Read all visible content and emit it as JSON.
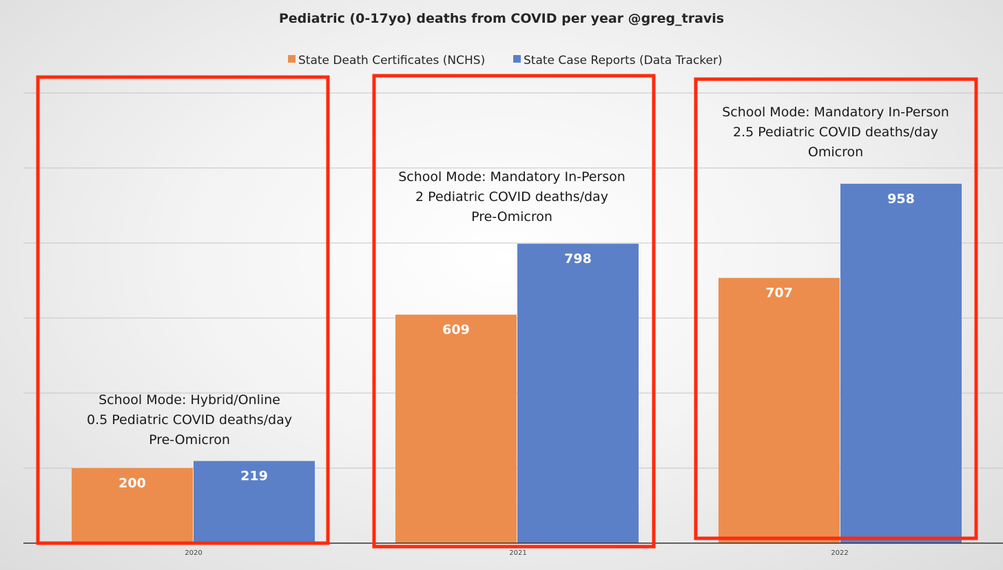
{
  "chart_data": {
    "type": "bar",
    "title": "Pediatric (0-17yo) deaths from COVID per year @greg_travis",
    "categories": [
      "2020",
      "2021",
      "2022"
    ],
    "series": [
      {
        "name": "State Death Certificates (NCHS)",
        "values": [
          200,
          609,
          707
        ],
        "color": "#ED8D4D"
      },
      {
        "name": "State Case Reports (Data Tracker)",
        "values": [
          219,
          798,
          958
        ],
        "color": "#5B80C8"
      }
    ],
    "ylim": [
      0,
      1200
    ],
    "grid": true,
    "legend": "top-center",
    "data_labels": true,
    "annotations": [
      {
        "category": "2020",
        "lines": [
          "School Mode: Hybrid/Online",
          "0.5 Pediatric COVID deaths/day",
          "Pre-Omicron"
        ]
      },
      {
        "category": "2021",
        "lines": [
          "School Mode: Mandatory In-Person",
          "2 Pediatric COVID deaths/day",
          "Pre-Omicron"
        ]
      },
      {
        "category": "2022",
        "lines": [
          "School Mode: Mandatory In-Person",
          "2.5 Pediatric COVID deaths/day",
          "Omicron"
        ]
      }
    ],
    "highlight_box_color": "#FF2A0E"
  }
}
